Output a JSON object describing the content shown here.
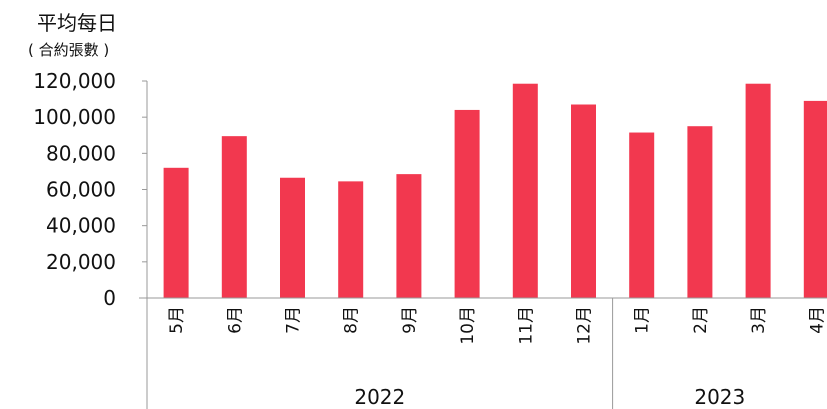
{
  "chart_data": {
    "type": "bar",
    "ylabel_line1": "平均每日",
    "ylabel_line2": "( 合約張數 )",
    "ylim": [
      0,
      120000
    ],
    "yticks": [
      "0",
      "20,000",
      "40,000",
      "60,000",
      "80,000",
      "100,000",
      "120,000"
    ],
    "categories": [
      "5月",
      "6月",
      "7月",
      "8月",
      "9月",
      "10月",
      "11月",
      "12月",
      "1月",
      "2月",
      "3月",
      "4月"
    ],
    "values": [
      72000,
      89500,
      66500,
      64500,
      68500,
      104000,
      118500,
      107000,
      91500,
      95000,
      118500,
      109000
    ],
    "groups": [
      {
        "label": "2022",
        "count": 8
      },
      {
        "label": "2023",
        "count": 4
      }
    ],
    "bar_color": "#f2384f",
    "axis_color": "#999999",
    "grid": false,
    "legend": "none"
  }
}
